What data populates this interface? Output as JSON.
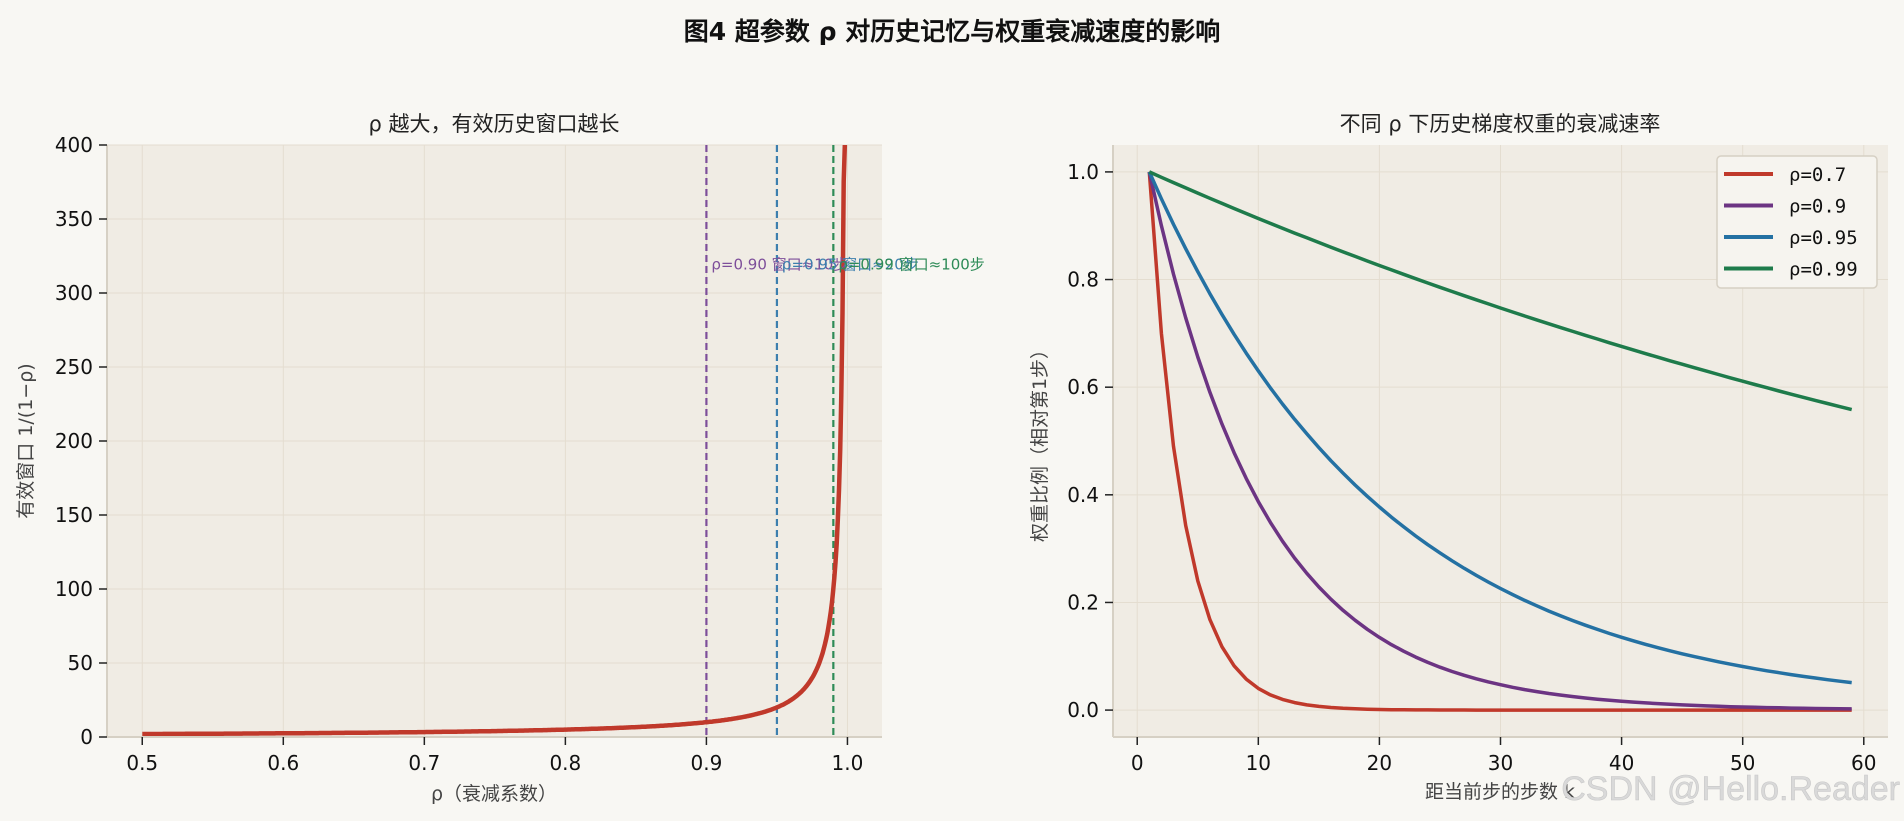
{
  "figure": {
    "title": "图4  超参数 ρ 对历史记忆与权重衰减速度的影响",
    "watermark": "CSDN @Hello.Reader",
    "background": "#f8f7f3",
    "axes_background": "#f0ece4"
  },
  "chart_data": [
    {
      "type": "line",
      "title": "ρ 越大，有效历史窗口越长",
      "xlabel": "ρ（衰减系数）",
      "ylabel": "有效窗口 1/(1−ρ)",
      "xlim": [
        0.475,
        1.0245
      ],
      "ylim": [
        0,
        400
      ],
      "xticks": [
        0.5,
        0.6,
        0.7,
        0.8,
        0.9,
        1.0
      ],
      "xtick_labels": [
        "0.5",
        "0.6",
        "0.7",
        "0.8",
        "0.9",
        "1.0"
      ],
      "yticks": [
        0,
        50,
        100,
        150,
        200,
        250,
        300,
        350,
        400
      ],
      "ytick_labels": [
        "0",
        "50",
        "100",
        "150",
        "200",
        "250",
        "300",
        "350",
        "400"
      ],
      "grid": true,
      "series": [
        {
          "name": "1/(1−ρ)",
          "color": "#c0392b",
          "function": "1/(1-rho)",
          "x_range": [
            0.5,
            0.999
          ],
          "x": [
            0.5,
            0.6,
            0.7,
            0.8,
            0.85,
            0.9,
            0.93,
            0.95,
            0.97,
            0.98,
            0.99,
            0.995,
            0.9975
          ],
          "y": [
            2,
            2.5,
            3.33,
            5,
            6.67,
            10,
            14.3,
            20,
            33.3,
            50,
            100,
            200,
            400
          ]
        }
      ],
      "vlines": [
        {
          "x": 0.9,
          "color": "#7d4e9a",
          "label": "ρ=0.90  窗口≈10步"
        },
        {
          "x": 0.95,
          "color": "#3d7fae",
          "label": "ρ=0.95  窗口≈20步"
        },
        {
          "x": 0.99,
          "color": "#2e8b57",
          "label": "ρ=0.99  窗口≈100步"
        }
      ],
      "annotation_y": 320
    },
    {
      "type": "line",
      "title": "不同 ρ 下历史梯度权重的衰减速率",
      "xlabel": "距当前步的步数 k",
      "ylabel": "权重比例（相对第1步）",
      "xlim": [
        -2,
        62
      ],
      "ylim": [
        -0.05,
        1.05
      ],
      "xticks": [
        0,
        10,
        20,
        30,
        40,
        50,
        60
      ],
      "xtick_labels": [
        "0",
        "10",
        "20",
        "30",
        "40",
        "50",
        "60"
      ],
      "yticks": [
        0.0,
        0.2,
        0.4,
        0.6,
        0.8,
        1.0
      ],
      "ytick_labels": [
        "0.0",
        "0.2",
        "0.4",
        "0.6",
        "0.8",
        "1.0"
      ],
      "grid": true,
      "legend_position": "upper right",
      "k_range": [
        1,
        59
      ],
      "series": [
        {
          "name": "ρ=0.7",
          "rho": 0.7,
          "color": "#c0392b",
          "x": [
            1,
            2,
            3,
            5,
            10,
            20,
            30,
            59
          ],
          "values": [
            1.0,
            0.7,
            0.49,
            0.24,
            0.04,
            0.0011,
            3e-05,
            0.0
          ]
        },
        {
          "name": "ρ=0.9",
          "rho": 0.9,
          "color": "#6c3483",
          "x": [
            1,
            5,
            10,
            20,
            30,
            40,
            59
          ],
          "values": [
            1.0,
            0.656,
            0.387,
            0.135,
            0.047,
            0.016,
            0.0022
          ]
        },
        {
          "name": "ρ=0.95",
          "rho": 0.95,
          "color": "#2471a3",
          "x": [
            1,
            10,
            20,
            30,
            40,
            50,
            59
          ],
          "values": [
            1.0,
            0.63,
            0.377,
            0.226,
            0.135,
            0.081,
            0.051
          ]
        },
        {
          "name": "ρ=0.99",
          "rho": 0.99,
          "color": "#1e7b4b",
          "x": [
            1,
            10,
            20,
            30,
            40,
            50,
            59
          ],
          "values": [
            1.0,
            0.914,
            0.826,
            0.747,
            0.676,
            0.611,
            0.558
          ]
        }
      ]
    }
  ]
}
